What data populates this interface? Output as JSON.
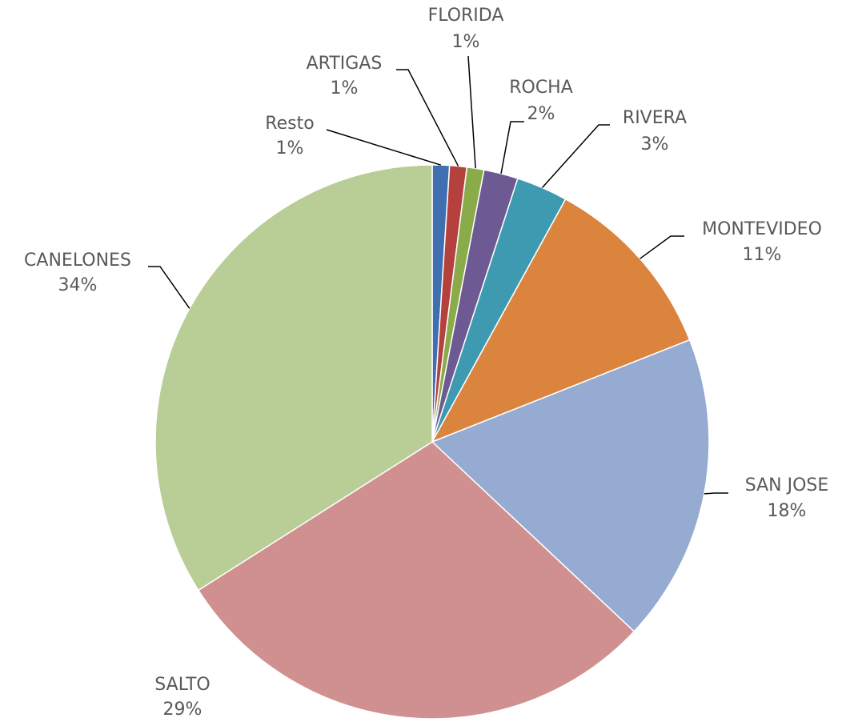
{
  "chart_data": {
    "type": "pie",
    "categories": [
      "Resto",
      "ARTIGAS",
      "FLORIDA",
      "ROCHA",
      "RIVERA",
      "MONTEVIDEO",
      "SAN JOSE",
      "SALTO",
      "CANELONES"
    ],
    "values": [
      1,
      1,
      1,
      2,
      3,
      11,
      18,
      29,
      34
    ],
    "value_labels": [
      "1%",
      "1%",
      "1%",
      "2%",
      "3%",
      "11%",
      "18%",
      "29%",
      "34%"
    ],
    "colors": [
      "#3f6fb0",
      "#b5413e",
      "#8aab4a",
      "#6e5a93",
      "#3e9ab0",
      "#db843d",
      "#95abd1",
      "#d09090",
      "#b9cd96"
    ]
  }
}
